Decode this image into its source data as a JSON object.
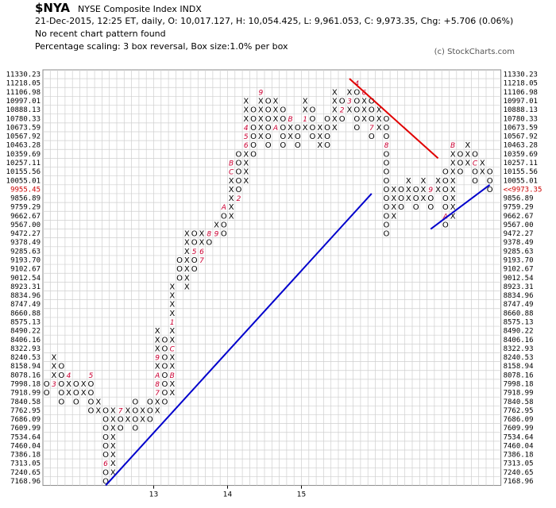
{
  "header": {
    "symbol": "$NYA",
    "name": "NYSE Composite Index  INDX",
    "quote": "21-Dec-2015, 12:25 ET, daily, O: 10,017.127, H: 10,054.425, L: 9,961.053, C: 9,973.35, Chg: +5.706 (0.06%)",
    "pattern": "No recent chart pattern found",
    "scaling": "Percentage scaling: 3 box reversal, Box size:1.0% per box",
    "copyright": "(c) StockCharts.com"
  },
  "chart_data": {
    "type": "point_and_figure",
    "box_levels": [
      "11330.23",
      "11218.05",
      "11106.98",
      "10997.01",
      "10888.13",
      "10780.33",
      "10673.59",
      "10567.92",
      "10463.28",
      "10359.69",
      "10257.11",
      "10155.56",
      "10055.01",
      "9955.45",
      "9856.89",
      "9759.29",
      "9662.67",
      "9567.00",
      "9472.27",
      "9378.49",
      "9285.63",
      "9193.70",
      "9102.67",
      "9012.54",
      "8923.31",
      "8834.96",
      "8747.49",
      "8660.88",
      "8575.13",
      "8490.22",
      "8406.16",
      "8322.93",
      "8240.53",
      "8158.94",
      "8078.16",
      "7998.18",
      "7918.99",
      "7840.58",
      "7762.95",
      "7686.09",
      "7609.99",
      "7534.64",
      "7460.04",
      "7386.18",
      "7313.05",
      "7240.65",
      "7168.96"
    ],
    "last_price_label": "9955.45",
    "right_last_price_label": "<<9973.35",
    "x_axis_labels": [
      {
        "col": 15,
        "label": "13"
      },
      {
        "col": 25,
        "label": "14"
      },
      {
        "col": 35,
        "label": "15"
      }
    ],
    "columns": [
      {
        "t": "O",
        "top": 35,
        "bot": 36
      },
      {
        "t": "X",
        "top": 32,
        "bot": 35,
        "m": {
          "35": "3"
        }
      },
      {
        "t": "O",
        "top": 33,
        "bot": 37
      },
      {
        "t": "X",
        "top": 34,
        "bot": 36,
        "m": {
          "34": "4"
        }
      },
      {
        "t": "O",
        "top": 35,
        "bot": 37
      },
      {
        "t": "X",
        "top": 35,
        "bot": 36
      },
      {
        "t": "O",
        "top": 34,
        "bot": 38,
        "m": {
          "34": "5"
        }
      },
      {
        "t": "X",
        "top": 37,
        "bot": 38
      },
      {
        "t": "O",
        "top": 38,
        "bot": 46,
        "m": {
          "44": "6"
        }
      },
      {
        "t": "X",
        "top": 38,
        "bot": 45
      },
      {
        "t": "O",
        "top": 38,
        "bot": 40,
        "m": {
          "38": "7"
        }
      },
      {
        "t": "X",
        "top": 38,
        "bot": 39
      },
      {
        "t": "O",
        "top": 37,
        "bot": 40
      },
      {
        "t": "X",
        "top": 38,
        "bot": 39
      },
      {
        "t": "O",
        "top": 37,
        "bot": 39
      },
      {
        "t": "X",
        "top": 29,
        "bot": 38,
        "m": {
          "32": "9",
          "34": "A",
          "35": "8",
          "36": "7"
        }
      },
      {
        "t": "O",
        "top": 30,
        "bot": 37
      },
      {
        "t": "X",
        "top": 24,
        "bot": 36,
        "m": {
          "28": "1",
          "31": "C",
          "34": "B",
          "23": "3",
          "21": "4"
        }
      },
      {
        "t": "O",
        "top": 21,
        "bot": 23
      },
      {
        "t": "X",
        "top": 18,
        "bot": 24
      },
      {
        "t": "O",
        "top": 18,
        "bot": 22,
        "m": {
          "20": "5"
        }
      },
      {
        "t": "X",
        "top": 18,
        "bot": 21,
        "m": {
          "20": "6",
          "21": "7"
        }
      },
      {
        "t": "O",
        "top": 18,
        "bot": 19,
        "m": {
          "18": "8"
        }
      },
      {
        "t": "X",
        "top": 17,
        "bot": 18,
        "m": {
          "18": "9"
        }
      },
      {
        "t": "O",
        "top": 15,
        "bot": 18,
        "m": {
          "15": "A"
        }
      },
      {
        "t": "X",
        "top": 10,
        "bot": 16,
        "m": {
          "10": "B",
          "11": "C"
        }
      },
      {
        "t": "O",
        "top": 9,
        "bot": 14,
        "m": {
          "14": "2"
        }
      },
      {
        "t": "X",
        "top": 3,
        "bot": 12,
        "m": {
          "6": "4",
          "7": "5",
          "8": "6"
        }
      },
      {
        "t": "O",
        "top": 4,
        "bot": 9
      },
      {
        "t": "X",
        "top": 2,
        "bot": 7,
        "m": {
          "2": "9"
        }
      },
      {
        "t": "O",
        "top": 3,
        "bot": 8
      },
      {
        "t": "X",
        "top": 3,
        "bot": 6,
        "m": {
          "6": "A"
        }
      },
      {
        "t": "O",
        "top": 4,
        "bot": 8
      },
      {
        "t": "X",
        "top": 5,
        "bot": 7,
        "m": {
          "5": "B"
        }
      },
      {
        "t": "O",
        "top": 6,
        "bot": 8,
        "m": {
          "5": "C"
        }
      },
      {
        "t": "X",
        "top": 3,
        "bot": 6,
        "m": {
          "5": "1"
        }
      },
      {
        "t": "O",
        "top": 4,
        "bot": 7
      },
      {
        "t": "X",
        "top": 6,
        "bot": 8
      },
      {
        "t": "O",
        "top": 5,
        "bot": 8
      },
      {
        "t": "X",
        "top": 2,
        "bot": 6
      },
      {
        "t": "O",
        "top": 3,
        "bot": 5,
        "m": {
          "4": "2"
        }
      },
      {
        "t": "X",
        "top": 2,
        "bot": 4,
        "m": {
          "3": "3"
        }
      },
      {
        "t": "O",
        "top": 1,
        "bot": 6,
        "m": {
          "1": "4"
        }
      },
      {
        "t": "X",
        "top": 2,
        "bot": 5,
        "m": {
          "2": "6"
        }
      },
      {
        "t": "O",
        "top": 3,
        "bot": 7,
        "m": {
          "6": "7"
        }
      },
      {
        "t": "X",
        "top": 4,
        "bot": 6
      },
      {
        "t": "O",
        "top": 5,
        "bot": 18,
        "m": {
          "8": "8"
        }
      },
      {
        "t": "X",
        "top": 13,
        "bot": 16
      },
      {
        "t": "O",
        "top": 13,
        "bot": 15
      },
      {
        "t": "X",
        "top": 12,
        "bot": 14
      },
      {
        "t": "O",
        "top": 13,
        "bot": 15
      },
      {
        "t": "X",
        "top": 12,
        "bot": 14
      },
      {
        "t": "O",
        "top": 13,
        "bot": 15,
        "m": {
          "13": "9"
        }
      },
      {
        "t": "X",
        "top": 12,
        "bot": 13
      },
      {
        "t": "O",
        "top": 11,
        "bot": 17,
        "m": {
          "16": "A"
        }
      },
      {
        "t": "X",
        "top": 8,
        "bot": 16,
        "m": {
          "8": "B"
        }
      },
      {
        "t": "O",
        "top": 9,
        "bot": 11
      },
      {
        "t": "X",
        "top": 8,
        "bot": 10
      },
      {
        "t": "O",
        "top": 9,
        "bot": 12,
        "m": {
          "10": "C"
        }
      },
      {
        "t": "X",
        "top": 10,
        "bot": 11
      },
      {
        "t": "O",
        "top": 11,
        "bot": 13
      }
    ],
    "trendlines": [
      {
        "color": "#0000cc",
        "from": {
          "col": 8,
          "box": 46.5
        },
        "to": {
          "col": 44,
          "box": 13.5
        }
      },
      {
        "color": "#0000cc",
        "from": {
          "col": 52,
          "box": 17.5
        },
        "to": {
          "col": 60,
          "box": 12.5
        }
      },
      {
        "color": "#e00000",
        "from": {
          "col": 41,
          "box": 0.5
        },
        "to": {
          "col": 53,
          "box": 9.5
        }
      }
    ]
  }
}
